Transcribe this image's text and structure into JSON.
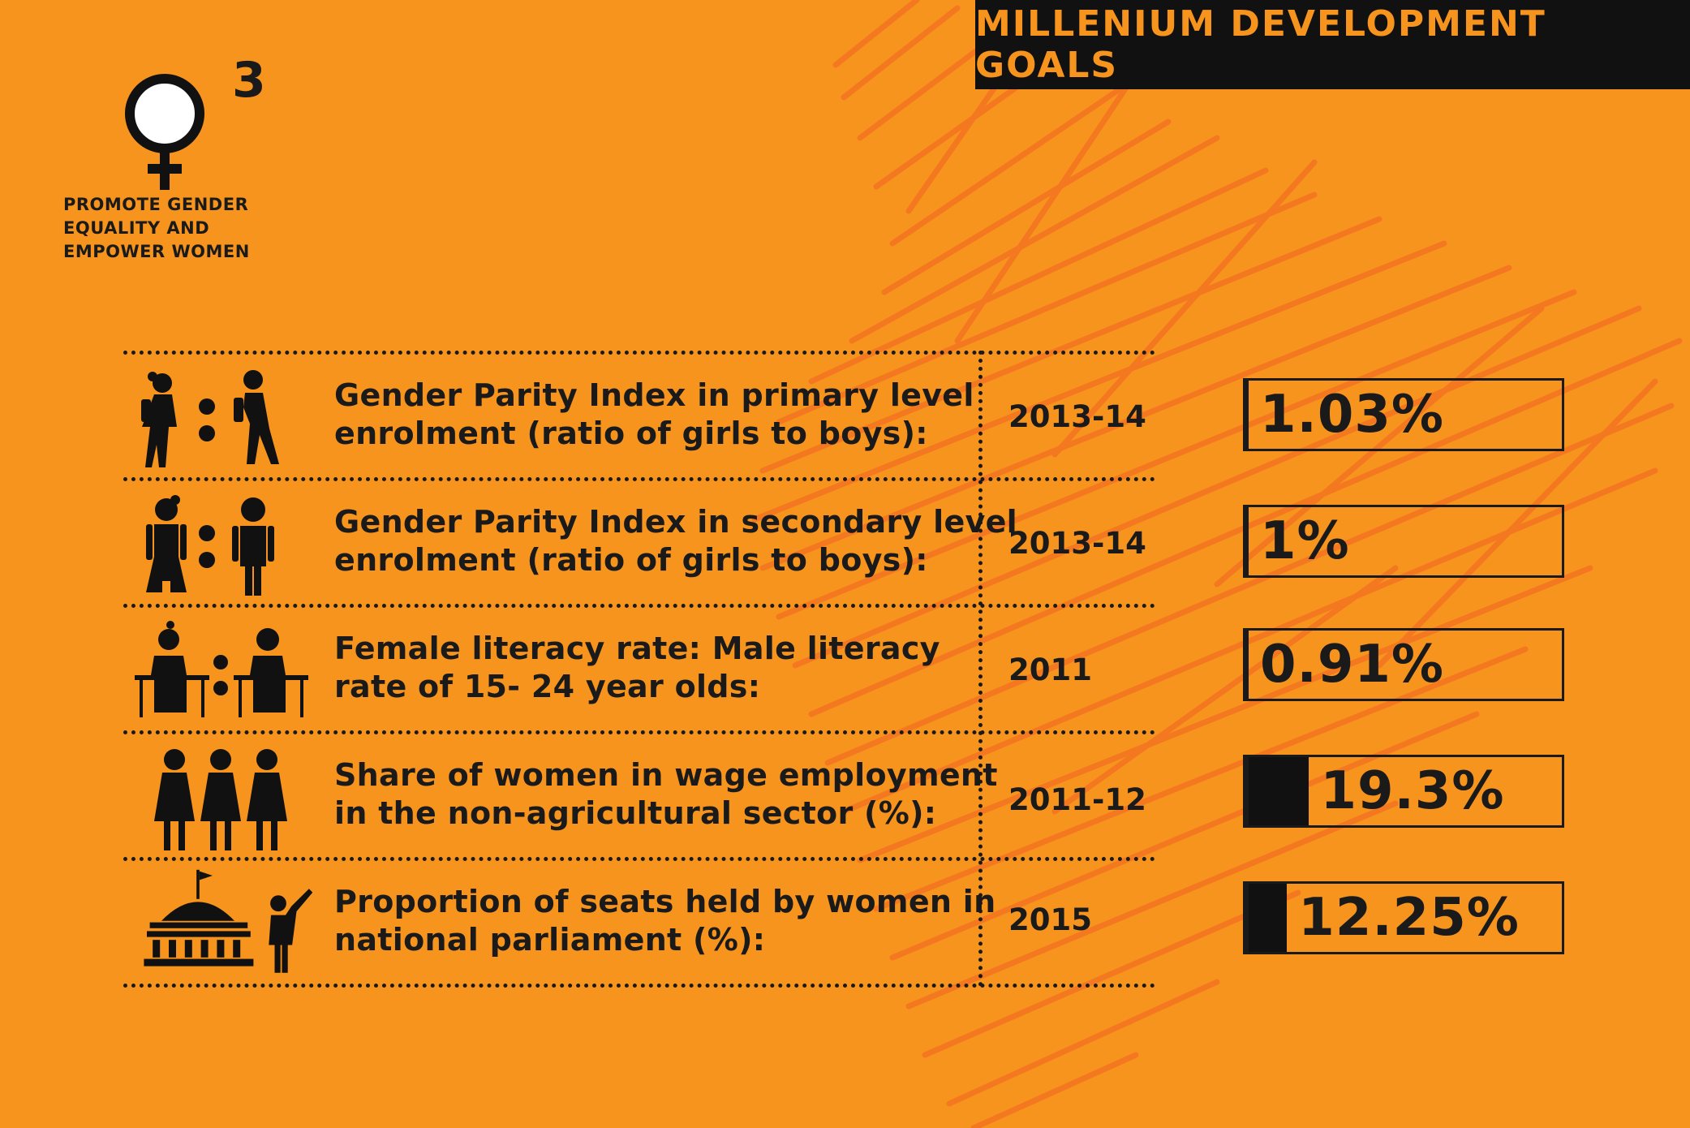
{
  "header": {
    "title": "MILLENIUM DEVELOPMENT GOALS"
  },
  "goal": {
    "number": "3",
    "icon": "female-symbol-icon",
    "text_lines": [
      "PROMOTE GENDER",
      "EQUALITY AND",
      "EMPOWER WOMEN"
    ]
  },
  "colors": {
    "background": "#f7941d",
    "scribble": "#f36f21",
    "dark": "#111111"
  },
  "rows": [
    {
      "icon": "girl-boy-walking-icon",
      "label_lines": [
        "Gender Parity Index in primary level",
        "enrolment (ratio of girls to boys):"
      ],
      "year": "2013-14",
      "value": "1.03%",
      "fill_percent": 0
    },
    {
      "icon": "girl-boy-standing-icon",
      "label_lines": [
        "Gender Parity Index in secondary level",
        "enrolment (ratio of girls to boys):"
      ],
      "year": "2013-14",
      "value": "1%",
      "fill_percent": 0
    },
    {
      "icon": "students-reading-icon",
      "label_lines": [
        "Female literacy rate: Male literacy",
        "rate of 15- 24 year olds:"
      ],
      "year": "2011",
      "value": "0.91%",
      "fill_percent": 0
    },
    {
      "icon": "women-workers-icon",
      "label_lines": [
        "Share of women in wage employment",
        "in the non-agricultural sector (%):"
      ],
      "year": "2011-12",
      "value": "19.3%",
      "fill_percent": 19.3
    },
    {
      "icon": "parliament-woman-icon",
      "label_lines": [
        "Proportion of seats held by women in",
        "national parliament (%):"
      ],
      "year": "2015",
      "value": "12.25%",
      "fill_percent": 12.25
    }
  ]
}
